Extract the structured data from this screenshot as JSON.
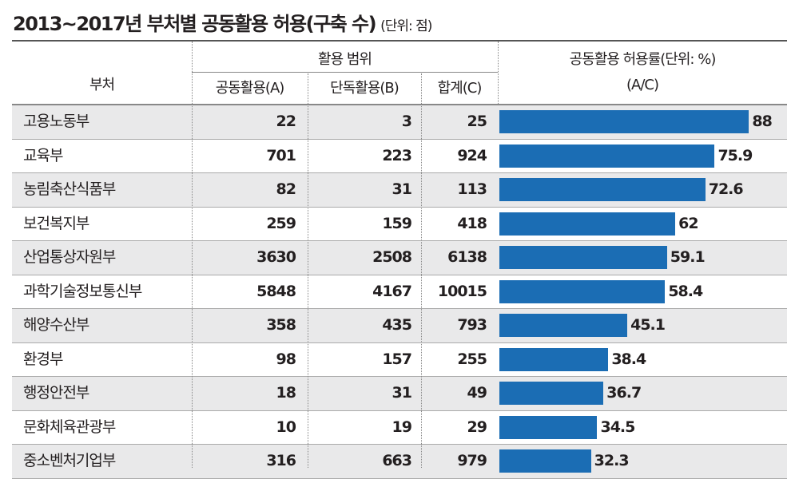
{
  "title": "2013~2017년 부처별 공동활용 허용(구축 수)",
  "title_unit": "(단위: 점)",
  "headers": {
    "dept": "부처",
    "group": "활용 범위",
    "a": "공동활용(A)",
    "b": "단독활용(B)",
    "c": "합계(C)",
    "rate": "공동활용 허용률(단위: %)",
    "rate_sub": "(A/C)"
  },
  "colors": {
    "bar": "#1b6db4"
  },
  "chart_data": {
    "type": "table",
    "title": "2013~2017년 부처별 공동활용 허용(구축 수)",
    "xlim": [
      0,
      100
    ],
    "rows": [
      {
        "dept": "고용노동부",
        "a": "22",
        "b": "3",
        "c": "25",
        "rate": 88
      },
      {
        "dept": "교육부",
        "a": "701",
        "b": "223",
        "c": "924",
        "rate": 75.9
      },
      {
        "dept": "농림축산식품부",
        "a": "82",
        "b": "31",
        "c": "113",
        "rate": 72.6
      },
      {
        "dept": "보건복지부",
        "a": "259",
        "b": "159",
        "c": "418",
        "rate": 62
      },
      {
        "dept": "산업통상자원부",
        "a": "3630",
        "b": "2508",
        "c": "6138",
        "rate": 59.1
      },
      {
        "dept": "과학기술정보통신부",
        "a": "5848",
        "b": "4167",
        "c": "10015",
        "rate": 58.4
      },
      {
        "dept": "해양수산부",
        "a": "358",
        "b": "435",
        "c": "793",
        "rate": 45.1
      },
      {
        "dept": "환경부",
        "a": "98",
        "b": "157",
        "c": "255",
        "rate": 38.4
      },
      {
        "dept": "행정안전부",
        "a": "18",
        "b": "31",
        "c": "49",
        "rate": 36.7
      },
      {
        "dept": "문화체육관광부",
        "a": "10",
        "b": "19",
        "c": "29",
        "rate": 34.5
      },
      {
        "dept": "중소벤처기업부",
        "a": "316",
        "b": "663",
        "c": "979",
        "rate": 32.3
      }
    ]
  }
}
